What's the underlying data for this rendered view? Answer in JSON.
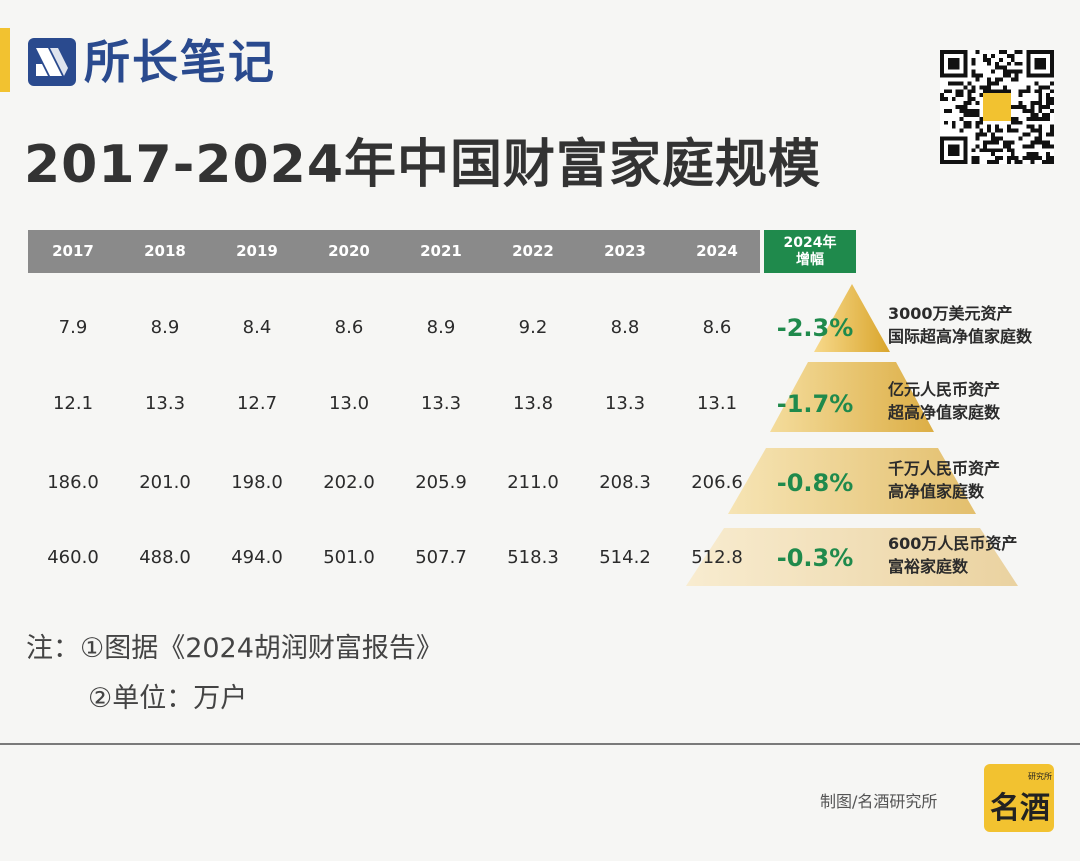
{
  "header": {
    "brand_name": "所长笔记",
    "title": "2017-2024年中国财富家庭规模"
  },
  "chart_data": {
    "type": "table",
    "title": "2017-2024年中国财富家庭规模",
    "year_columns": [
      "2017",
      "2018",
      "2019",
      "2020",
      "2021",
      "2022",
      "2023",
      "2024"
    ],
    "growth_column": "2024年增幅",
    "rows": [
      {
        "values": [
          "7.9",
          "8.9",
          "8.4",
          "8.6",
          "8.9",
          "9.2",
          "8.8",
          "8.6"
        ],
        "growth": "-2.3%",
        "category_line1": "3000万美元资产",
        "category_line2": "国际超高净值家庭数"
      },
      {
        "values": [
          "12.1",
          "13.3",
          "12.7",
          "13.0",
          "13.3",
          "13.8",
          "13.3",
          "13.1"
        ],
        "growth": "-1.7%",
        "category_line1": "亿元人民币资产",
        "category_line2": "超高净值家庭数"
      },
      {
        "values": [
          "186.0",
          "201.0",
          "198.0",
          "202.0",
          "205.9",
          "211.0",
          "208.3",
          "206.6"
        ],
        "growth": "-0.8%",
        "category_line1": "千万人民币资产",
        "category_line2": "高净值家庭数"
      },
      {
        "values": [
          "460.0",
          "488.0",
          "494.0",
          "501.0",
          "507.7",
          "518.3",
          "514.2",
          "512.8"
        ],
        "growth": "-0.3%",
        "category_line1": "600万人民币资产",
        "category_line2": "富裕家庭数"
      }
    ]
  },
  "growth_header": {
    "line1": "2024年",
    "line2": "增幅"
  },
  "notes": {
    "line1": "注：①图据《2024胡润财富报告》",
    "line2": "②单位：万户"
  },
  "footer": {
    "credit": "制图/名酒研究所",
    "logo_small": "研究所",
    "logo_main": "名酒"
  },
  "colors": {
    "brand_blue": "#2a4a8e",
    "accent_yellow": "#f2c230",
    "growth_green": "#1f8a4c",
    "header_gray": "#8a8a8a",
    "pyramid_gold": "#d9a52c"
  },
  "icons": {
    "brand": "brand-logo-icon",
    "qr": "qr-code-icon",
    "footer_logo": "mingjiu-logo-icon"
  }
}
